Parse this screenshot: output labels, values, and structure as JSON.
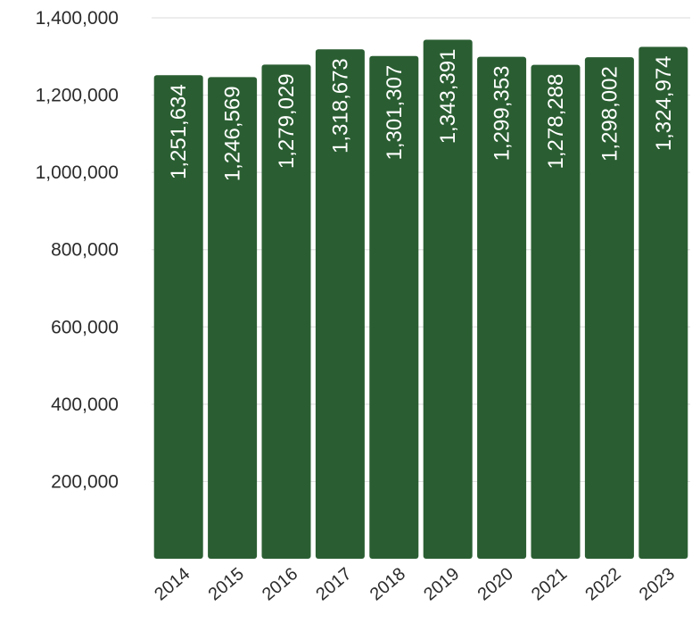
{
  "colors": {
    "bar": "#2a5e32",
    "grid": "#e2e2e2",
    "text": "#2b2b2b",
    "label": "#ffffff"
  },
  "chart_data": {
    "type": "bar",
    "categories": [
      "2014",
      "2015",
      "2016",
      "2017",
      "2018",
      "2019",
      "2020",
      "2021",
      "2022",
      "2023"
    ],
    "values": [
      1251634,
      1246569,
      1279029,
      1318673,
      1301307,
      1343391,
      1299353,
      1278288,
      1298002,
      1324974
    ],
    "data_labels": [
      "1,251,634",
      "1,246,569",
      "1,279,029",
      "1,318,673",
      "1,301,307",
      "1,343,391",
      "1,299,353",
      "1,278,288",
      "1,298,002",
      "1,324,974"
    ],
    "y_ticks": [
      200000,
      400000,
      600000,
      800000,
      1000000,
      1200000,
      1400000
    ],
    "y_tick_labels": [
      "200,000",
      "400,000",
      "600,000",
      "800,000",
      "1,000,000",
      "1,200,000",
      "1,400,000"
    ],
    "ylim": [
      0,
      1400000
    ],
    "grid": true,
    "title": "",
    "xlabel": "",
    "ylabel": ""
  }
}
